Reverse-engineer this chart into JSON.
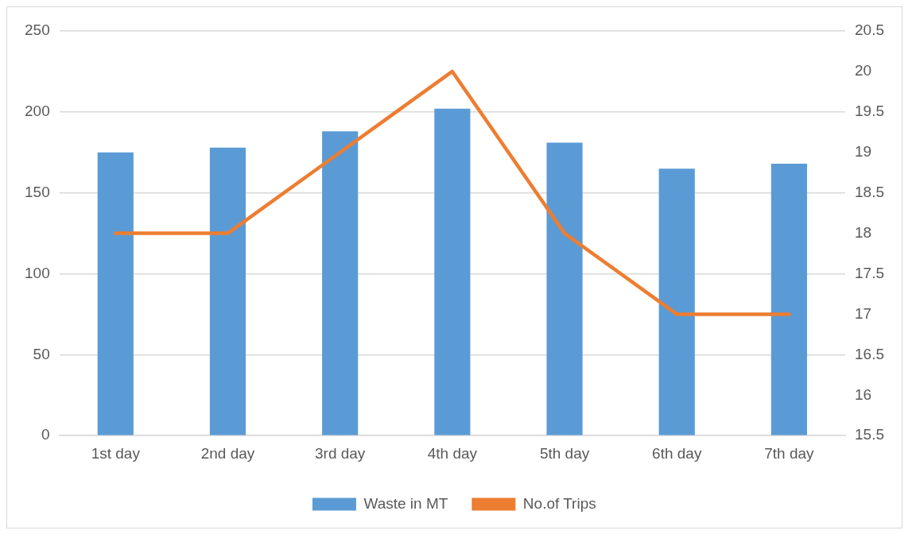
{
  "chart_data": {
    "type": "bar",
    "categories": [
      "1st day",
      "2nd day",
      "3rd day",
      "4th day",
      "5th day",
      "6th day",
      "7th day"
    ],
    "series": [
      {
        "name": "Waste in MT",
        "color": "#5b9bd5",
        "values": [
          175,
          178,
          188,
          202,
          181,
          165,
          168
        ]
      },
      {
        "name": "No.of Trips",
        "type": "line",
        "axis": "y2",
        "color": "#ed7d31",
        "values": [
          18,
          18,
          19,
          20,
          18,
          17,
          17
        ]
      }
    ],
    "ylim": [
      0,
      250
    ],
    "yticks": [
      0,
      50,
      100,
      150,
      200,
      250
    ],
    "y2lim": [
      15.5,
      20.5
    ],
    "y2ticks": [
      15.5,
      16,
      16.5,
      17,
      17.5,
      18,
      18.5,
      19,
      19.5,
      20,
      20.5
    ],
    "grid": "y",
    "legend": "bottom",
    "marker": "none"
  }
}
